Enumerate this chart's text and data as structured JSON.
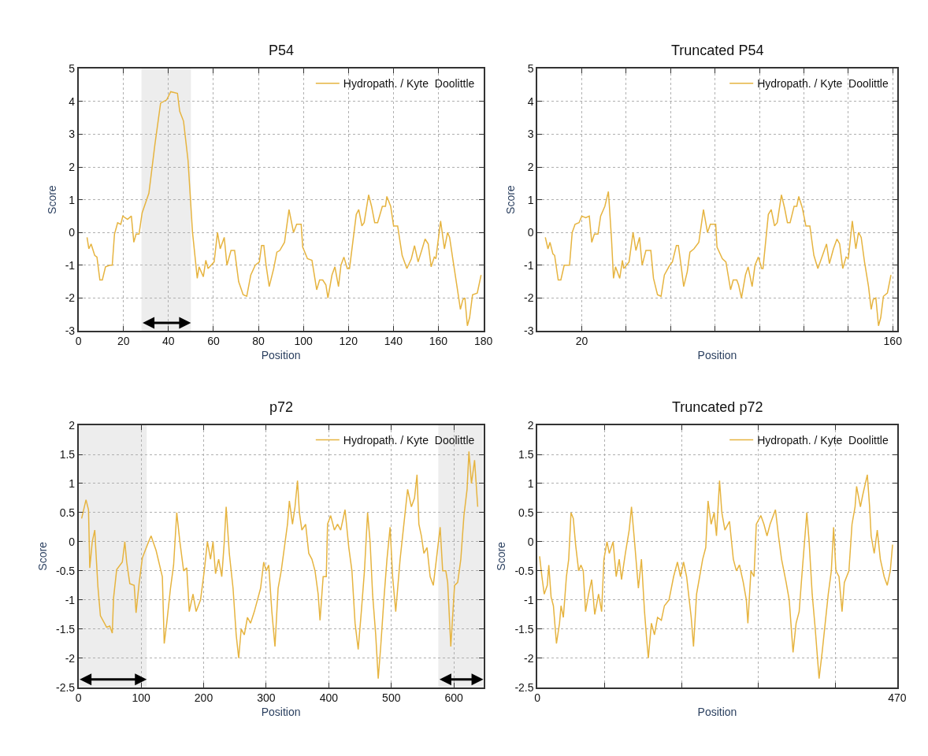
{
  "chart_data": [
    {
      "type": "line",
      "title": "P54",
      "xlabel": "Position",
      "ylabel": "Score",
      "grid": true,
      "legend": "top right",
      "marker": "none",
      "xlim": [
        0,
        180
      ],
      "xticks": [
        0,
        20,
        40,
        60,
        80,
        100,
        120,
        140,
        160,
        180
      ],
      "ylim": [
        -3,
        5
      ],
      "yticks": [
        -3,
        -2,
        -1,
        0,
        1,
        2,
        3,
        4,
        5
      ],
      "bands": [
        {
          "axis": "x",
          "from": 28,
          "to": 50,
          "color": "#000000"
        }
      ],
      "x": [
        3.8,
        4.6,
        5.6,
        7.2,
        8.2,
        9.5,
        10.6,
        12,
        14,
        15,
        16,
        17.4,
        18.8,
        19.7,
        21.8,
        23.5,
        24.6,
        25.6,
        26.9,
        28.3,
        31.3,
        34,
        36.5,
        39.2,
        41,
        44,
        45,
        46.7,
        48.7,
        50.7,
        52.8,
        53.6,
        55.5,
        56.6,
        57.6,
        60.3,
        61.8,
        63,
        64.8,
        66,
        67.8,
        69.4,
        71.2,
        73.2,
        74.8,
        76.6,
        78.6,
        80.4,
        81.4,
        82.4,
        83.4,
        84.8,
        86.8,
        88.2,
        89.5,
        91.6,
        93.6,
        95.6,
        97,
        99,
        99.7,
        101.8,
        103.8,
        105.9,
        107.2,
        108.6,
        110,
        110.9,
        112.7,
        114,
        115.6,
        116.7,
        118,
        119.5,
        120.5,
        123.5,
        124.6,
        126,
        127,
        129,
        130.3,
        131.7,
        133,
        135.1,
        136.5,
        137.1,
        138.8,
        140.1,
        141.9,
        143.9,
        146,
        148,
        149.4,
        151,
        152.8,
        154.1,
        155.5,
        156.8,
        158.2,
        158.9,
        161,
        162.7,
        164.1,
        165,
        166.4,
        168.4,
        169.8,
        170.9,
        171.8,
        172.9,
        173.9,
        175.2,
        177.3,
        179
      ],
      "series": [
        {
          "name": "Hydropath. / Kyte  Doolittle",
          "color": "#e6b440",
          "values": [
            -0.15,
            -0.5,
            -0.35,
            -0.7,
            -0.75,
            -1.45,
            -1.45,
            -1.05,
            -1.0,
            -1.0,
            -0.05,
            0.3,
            0.25,
            0.5,
            0.4,
            0.5,
            -0.3,
            -0.05,
            -0.05,
            0.6,
            1.2,
            2.7,
            3.95,
            4.05,
            4.3,
            4.25,
            3.7,
            3.4,
            2.2,
            0.0,
            -1.4,
            -1.05,
            -1.35,
            -0.85,
            -1.1,
            -0.9,
            0.0,
            -0.5,
            -0.15,
            -1.0,
            -0.55,
            -0.55,
            -1.5,
            -1.9,
            -1.95,
            -1.3,
            -1.0,
            -0.9,
            -0.4,
            -0.4,
            -1.0,
            -1.65,
            -1.1,
            -0.6,
            -0.55,
            -0.3,
            0.7,
            0.0,
            0.25,
            0.25,
            -0.45,
            -0.8,
            -0.85,
            -1.75,
            -1.45,
            -1.45,
            -1.6,
            -2.0,
            -1.3,
            -1.05,
            -1.65,
            -1.0,
            -0.75,
            -1.1,
            -1.1,
            0.55,
            0.7,
            0.2,
            0.3,
            1.15,
            0.8,
            0.3,
            0.3,
            0.8,
            0.8,
            1.1,
            0.8,
            0.2,
            0.2,
            -0.7,
            -1.1,
            -0.8,
            -0.4,
            -0.9,
            -0.5,
            -0.2,
            -0.35,
            -1.05,
            -0.75,
            -0.8,
            0.35,
            -0.5,
            0.0,
            -0.15,
            -0.8,
            -1.7,
            -2.35,
            -2.05,
            -2.0,
            -2.85,
            -2.6,
            -1.9,
            -1.85,
            -1.3
          ]
        }
      ]
    },
    {
      "type": "line",
      "title": "Truncated P54",
      "xlabel": "Position",
      "ylabel": "Score",
      "grid": true,
      "legend": "top right",
      "marker": "none",
      "xlim": [
        0,
        162
      ],
      "xticks": [
        {
          "value": 20,
          "label": "20"
        },
        {
          "value": 40,
          "label": null
        },
        {
          "value": 60,
          "label": null
        },
        {
          "value": 80,
          "label": null
        },
        {
          "value": 100,
          "label": null
        },
        {
          "value": 120,
          "label": null
        },
        {
          "value": 140,
          "label": null
        },
        {
          "value": 160,
          "label": "160"
        }
      ],
      "ylim": [
        -3,
        5
      ],
      "yticks": [
        -3,
        -2,
        -1,
        0,
        1,
        2,
        3,
        4,
        5
      ],
      "x": [
        3.6,
        4.8,
        5.7,
        7,
        7.8,
        9.4,
        10.6,
        12.1,
        14.5,
        15.7,
        17,
        18.8,
        20,
        21.8,
        23.4,
        24.5,
        25.7,
        27.3,
        28.5,
        30.4,
        32,
        32.4,
        33.4,
        34.3,
        35.2,
        37.1,
        38.3,
        38.9,
        41.3,
        43.1,
        44.4,
        46,
        47.2,
        48.9,
        51.1,
        52.3,
        54.1,
        55.7,
        57.2,
        59.6,
        60.8,
        62.6,
        63.5,
        64.7,
        65.9,
        67.5,
        68.7,
        70.5,
        72.7,
        74.8,
        76.6,
        77.9,
        80.3,
        80.9,
        83.3,
        84.9,
        87,
        88.2,
        89.8,
        90.6,
        91.9,
        93.7,
        94.9,
        96.7,
        98,
        99.5,
        101,
        101.6,
        104,
        105.3,
        106.8,
        108,
        109.9,
        111.3,
        112.6,
        113.8,
        115.6,
        116.8,
        117.7,
        119.3,
        120.9,
        122.7,
        124.5,
        126.3,
        128.4,
        130.2,
        131.5,
        133.3,
        134.9,
        136.1,
        137.5,
        139,
        140,
        141.8,
        143.4,
        144.6,
        145.8,
        147.3,
        149.1,
        150.3,
        151.2,
        152.4,
        153.6,
        154.6,
        155.8,
        157.6,
        159.2
      ],
      "series": [
        {
          "name": "Hydropath. / Kyte  Doolittle",
          "color": "#e6b440",
          "values": [
            -0.15,
            -0.5,
            -0.3,
            -0.65,
            -0.7,
            -1.45,
            -1.45,
            -1.0,
            -1.0,
            0.0,
            0.25,
            0.3,
            0.5,
            0.45,
            0.5,
            -0.3,
            -0.05,
            -0.05,
            0.5,
            0.8,
            1.25,
            0.85,
            -0.2,
            -1.4,
            -1.05,
            -1.4,
            -0.85,
            -1.1,
            -0.9,
            0.0,
            -0.55,
            -0.15,
            -1.0,
            -0.55,
            -0.55,
            -1.4,
            -1.9,
            -1.95,
            -1.3,
            -1.0,
            -0.9,
            -0.4,
            -0.4,
            -1.0,
            -1.65,
            -1.2,
            -0.6,
            -0.5,
            -0.3,
            0.7,
            0.0,
            0.25,
            0.25,
            -0.45,
            -0.8,
            -0.9,
            -1.75,
            -1.45,
            -1.45,
            -1.6,
            -2.0,
            -1.3,
            -1.05,
            -1.65,
            -1.0,
            -0.75,
            -1.1,
            -1.1,
            0.55,
            0.7,
            0.2,
            0.3,
            1.15,
            0.75,
            0.3,
            0.3,
            0.8,
            0.8,
            1.1,
            0.75,
            0.2,
            0.2,
            -0.7,
            -1.1,
            -0.7,
            -0.35,
            -0.95,
            -0.5,
            -0.2,
            -0.35,
            -1.1,
            -0.75,
            -0.8,
            0.35,
            -0.5,
            0.0,
            -0.15,
            -0.9,
            -1.65,
            -2.35,
            -2.05,
            -2.0,
            -2.85,
            -2.6,
            -1.95,
            -1.85,
            -1.3
          ]
        }
      ]
    },
    {
      "type": "line",
      "title": "p72",
      "xlabel": "Position",
      "ylabel": "Score",
      "grid": true,
      "legend": "top right",
      "marker": "none",
      "xlim": [
        0,
        647
      ],
      "xticks": [
        0,
        100,
        200,
        300,
        400,
        500,
        600
      ],
      "ylim": [
        -2.5,
        2
      ],
      "yticks": [
        -2.5,
        -2,
        -1.5,
        -1,
        -0.5,
        0,
        0.5,
        1,
        1.5,
        2
      ],
      "bands": [
        {
          "axis": "x",
          "from": 0,
          "to": 109,
          "color": "#000000"
        },
        {
          "axis": "x",
          "from": 575,
          "to": 647,
          "color": "#000000"
        }
      ],
      "x": [
        5,
        12,
        16,
        18,
        22,
        26,
        28,
        31,
        35,
        45,
        50,
        54,
        56,
        61,
        70,
        74,
        77,
        82,
        89,
        92,
        97,
        102,
        112,
        116,
        124,
        134,
        137,
        141,
        147,
        152,
        157,
        162,
        168,
        173,
        177,
        183,
        188,
        195,
        201,
        206,
        211,
        215,
        219,
        224,
        229,
        233,
        236,
        241,
        247,
        252,
        256,
        260,
        265,
        270,
        275,
        281,
        286,
        291,
        296,
        300,
        304,
        309,
        314,
        319,
        324,
        329,
        334,
        337,
        342,
        346,
        350,
        353,
        357,
        363,
        368,
        373,
        378,
        383,
        386,
        391,
        396,
        398,
        403,
        409,
        414,
        419,
        426,
        432,
        437,
        442,
        447,
        452,
        457,
        462,
        466,
        470,
        475,
        479,
        483,
        488,
        493,
        498,
        502,
        507,
        514,
        519,
        526,
        532,
        537,
        541,
        544,
        548,
        552,
        557,
        562,
        567,
        572,
        578,
        582,
        587,
        590,
        595,
        601,
        606,
        611,
        616,
        621,
        624,
        628,
        633,
        638
      ],
      "series": [
        {
          "name": "Hydropath. / Kyte  Doolittle",
          "color": "#e6b440",
          "values": [
            0.4,
            0.72,
            0.55,
            -0.45,
            0.0,
            0.2,
            -0.2,
            -0.77,
            -1.27,
            -1.47,
            -1.45,
            -1.57,
            -0.97,
            -0.48,
            -0.35,
            0.0,
            -0.35,
            -0.72,
            -0.75,
            -1.22,
            -0.7,
            -0.28,
            0.0,
            0.1,
            -0.15,
            -0.6,
            -1.75,
            -1.4,
            -0.8,
            -0.4,
            0.5,
            0.0,
            -0.5,
            -0.45,
            -1.2,
            -0.9,
            -1.2,
            -1.0,
            -0.5,
            0.0,
            -0.3,
            0.0,
            -0.55,
            -0.3,
            -0.6,
            0.0,
            0.6,
            -0.2,
            -0.8,
            -1.6,
            -2.0,
            -1.5,
            -1.6,
            -1.3,
            -1.4,
            -1.2,
            -1.0,
            -0.8,
            -0.35,
            -0.5,
            -0.4,
            -1.2,
            -1.8,
            -0.8,
            -0.5,
            -0.1,
            0.3,
            0.7,
            0.3,
            0.6,
            1.05,
            0.5,
            0.2,
            0.3,
            -0.2,
            -0.3,
            -0.5,
            -0.9,
            -1.35,
            -0.6,
            -0.6,
            0.3,
            0.45,
            0.2,
            0.3,
            0.2,
            0.55,
            -0.1,
            -0.5,
            -1.4,
            -1.85,
            -1.2,
            -0.5,
            0.5,
            0.0,
            -0.9,
            -1.6,
            -2.35,
            -1.8,
            -1.0,
            -0.3,
            0.25,
            -0.6,
            -1.2,
            -0.3,
            0.2,
            0.9,
            0.6,
            0.75,
            1.15,
            0.3,
            0.1,
            -0.2,
            -0.1,
            -0.6,
            -0.75,
            -0.3,
            0.25,
            -0.5,
            -0.5,
            -0.7,
            -1.8,
            -0.75,
            -0.7,
            -0.3,
            0.45,
            0.9,
            1.55,
            1.0,
            1.4,
            0.6
          ]
        }
      ]
    },
    {
      "type": "line",
      "title": "Truncated p72",
      "xlabel": "Position",
      "ylabel": "Score",
      "grid": true,
      "legend": "top right",
      "marker": "none",
      "xlim": [
        0,
        470
      ],
      "xticks": [
        {
          "value": 0,
          "label": "0"
        },
        {
          "value": 88,
          "label": null
        },
        {
          "value": 189,
          "label": null
        },
        {
          "value": 289,
          "label": null
        },
        {
          "value": 389,
          "label": null
        },
        {
          "value": 470,
          "label": "470"
        }
      ],
      "ylim": [
        -2.5,
        2
      ],
      "yticks": [
        -2.5,
        -2,
        -1.5,
        -1,
        -0.5,
        0,
        0.5,
        1,
        1.5,
        2
      ],
      "x": [
        3,
        6,
        9,
        13,
        15,
        18,
        21,
        25,
        29,
        31,
        34,
        38,
        41,
        44,
        47,
        50,
        54,
        57,
        60,
        63,
        67,
        71,
        75,
        80,
        84,
        87,
        91,
        94,
        99,
        103,
        107,
        110,
        115,
        120,
        123,
        127,
        132,
        136,
        140,
        143,
        145,
        149,
        153,
        157,
        162,
        166,
        172,
        178,
        183,
        187,
        191,
        195,
        201,
        204,
        208,
        212,
        216,
        220,
        223,
        227,
        231,
        234,
        238,
        241,
        245,
        251,
        256,
        260,
        264,
        269,
        273,
        275,
        279,
        283,
        286,
        292,
        296,
        300,
        304,
        311,
        315,
        319,
        325,
        329,
        334,
        338,
        342,
        346,
        352,
        355,
        359,
        363,
        368,
        372,
        376,
        380,
        384,
        387,
        390,
        394,
        398,
        401,
        407,
        411,
        415,
        417,
        422,
        425,
        431,
        434,
        436,
        440,
        444,
        448,
        453,
        457,
        461,
        464
      ],
      "series": [
        {
          "name": "Hydropath. / Kyte  Doolittle",
          "color": "#e6b440",
          "values": [
            -0.25,
            -0.6,
            -0.9,
            -0.75,
            -0.4,
            -0.95,
            -1.1,
            -1.75,
            -1.4,
            -1.1,
            -1.3,
            -0.6,
            -0.3,
            0.5,
            0.4,
            -0.05,
            -0.5,
            -0.4,
            -0.5,
            -1.2,
            -0.9,
            -0.65,
            -1.25,
            -0.9,
            -1.2,
            -0.3,
            0.0,
            -0.2,
            0.0,
            -0.6,
            -0.3,
            -0.65,
            -0.2,
            0.2,
            0.6,
            0.0,
            -0.8,
            -0.3,
            -1.2,
            -1.7,
            -2.0,
            -1.4,
            -1.6,
            -1.3,
            -1.35,
            -1.1,
            -1.0,
            -0.6,
            -0.35,
            -0.6,
            -0.35,
            -0.6,
            -1.3,
            -1.8,
            -0.9,
            -0.6,
            -0.3,
            -0.1,
            0.7,
            0.3,
            0.5,
            0.1,
            1.05,
            0.5,
            0.2,
            0.35,
            -0.3,
            -0.5,
            -0.4,
            -0.7,
            -1.0,
            -1.4,
            -0.5,
            -0.6,
            0.3,
            0.45,
            0.3,
            0.1,
            0.3,
            0.55,
            0.1,
            -0.3,
            -0.7,
            -1.0,
            -1.9,
            -1.4,
            -1.2,
            -0.5,
            0.5,
            0.0,
            -0.9,
            -1.5,
            -2.35,
            -1.9,
            -1.4,
            -0.9,
            -0.5,
            0.25,
            -0.5,
            -0.6,
            -1.2,
            -0.7,
            -0.5,
            0.3,
            0.6,
            0.95,
            0.6,
            0.8,
            1.15,
            0.6,
            0.1,
            -0.2,
            0.2,
            -0.3,
            -0.6,
            -0.75,
            -0.5,
            -0.05
          ]
        }
      ]
    }
  ]
}
